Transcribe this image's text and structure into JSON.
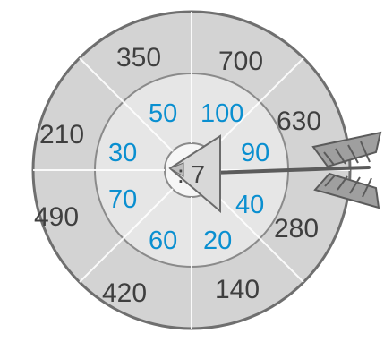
{
  "target": {
    "center_label": ": 7",
    "outer_numbers": [
      "350",
      "700",
      "630",
      "280",
      "140",
      "420",
      "490",
      "210"
    ],
    "inner_numbers": [
      "50",
      "100",
      "90",
      "40",
      "20",
      "60",
      "70",
      "30"
    ]
  },
  "colors": {
    "outer_ring": "#d3d3d3",
    "middle_ring": "#e6e6e6",
    "bull": "#f6f6f6",
    "outer_text": "#3f3f3f",
    "inner_text": "#0a8fd0",
    "outline": "#6f6f6f"
  },
  "icons": {
    "arrow": "arrow-icon"
  }
}
